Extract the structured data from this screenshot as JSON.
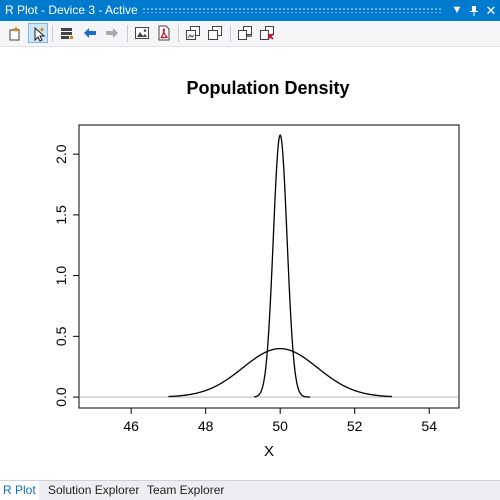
{
  "window": {
    "title": "R Plot - Device 3 - Active",
    "controls": [
      "dropdown-icon",
      "pin-icon",
      "close-icon"
    ]
  },
  "toolbar": {
    "tools": [
      "new-plot-window-icon",
      "activate-window-icon",
      "history-icon",
      "back-arrow-icon",
      "forward-arrow-icon",
      "export-image-icon",
      "export-pdf-icon",
      "copy-bitmap-icon",
      "copy-metafile-icon",
      "clear-plot-icon",
      "remove-all-plots-icon"
    ]
  },
  "chart_data": {
    "type": "line",
    "title": "Population Density",
    "xlabel": "X",
    "ylabel": "",
    "xlim": [
      44.6,
      54.8
    ],
    "ylim": [
      -0.09,
      2.24
    ],
    "xticks": [
      46,
      48,
      50,
      52,
      54
    ],
    "xtick_labels": [
      "46",
      "48",
      "50",
      "52",
      "54"
    ],
    "yticks": [
      0.0,
      0.5,
      1.0,
      1.5,
      2.0
    ],
    "ytick_labels": [
      "0.0",
      "0.5",
      "1.0",
      "1.5",
      "2.0"
    ],
    "series": [
      {
        "color": "#000000",
        "mean": 50,
        "sd": 1.0,
        "x_range": [
          47,
          53
        ]
      },
      {
        "color": "#000000",
        "mean": 50,
        "sd": 0.185,
        "x_range": [
          49.3,
          50.8
        ]
      }
    ],
    "baseline": {
      "y": 0,
      "color": "#bebebe"
    },
    "grid": false
  },
  "bottom_tabs": [
    {
      "label": "R Plot",
      "active": true
    },
    {
      "label": "Solution Explorer",
      "active": false
    },
    {
      "label": "Team Explorer",
      "active": false
    }
  ]
}
